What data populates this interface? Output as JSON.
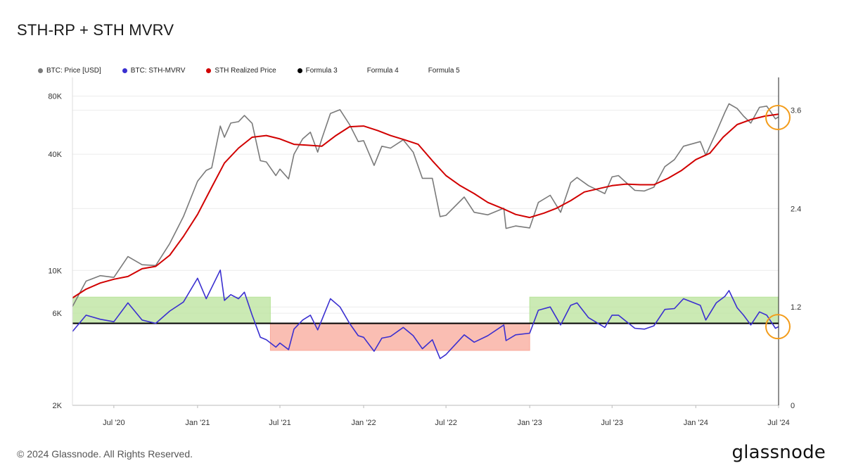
{
  "title": "STH-RP + STH MVRV",
  "legend": [
    {
      "label": "BTC: Price [USD]",
      "color": "#7a7a7a"
    },
    {
      "label": "BTC: STH-MVRV",
      "color": "#3a2fd0"
    },
    {
      "label": "STH Realized Price",
      "color": "#d10000"
    },
    {
      "label": "Formula 3",
      "color": "#000000"
    },
    {
      "label": "Formula 4",
      "color": ""
    },
    {
      "label": "Formula 5",
      "color": ""
    }
  ],
  "footer": "© 2024 Glassnode. All Rights Reserved.",
  "logo_text": "glassnode",
  "chart_data": {
    "type": "line",
    "x_type": "date",
    "x_range": [
      "2020-04-01",
      "2024-07-01"
    ],
    "x_ticks": [
      {
        "date": "2020-07-01",
        "label": "Jul '20"
      },
      {
        "date": "2021-01-01",
        "label": "Jan '21"
      },
      {
        "date": "2021-07-01",
        "label": "Jul '21"
      },
      {
        "date": "2022-01-01",
        "label": "Jan '22"
      },
      {
        "date": "2022-07-01",
        "label": "Jul '22"
      },
      {
        "date": "2023-01-01",
        "label": "Jan '23"
      },
      {
        "date": "2023-07-01",
        "label": "Jul '23"
      },
      {
        "date": "2024-01-01",
        "label": "Jan '24"
      },
      {
        "date": "2024-07-01",
        "label": "Jul '24"
      }
    ],
    "y_left": {
      "scale": "log",
      "range": [
        2000,
        100000
      ],
      "ticks": [
        {
          "value": 2000,
          "label": "2K"
        },
        {
          "value": 6000,
          "label": "6K"
        },
        {
          "value": 10000,
          "label": "10K"
        },
        {
          "value": 40000,
          "label": "40K"
        },
        {
          "value": 80000,
          "label": "80K"
        }
      ]
    },
    "y_right": {
      "scale": "linear",
      "range": [
        0,
        4.0
      ],
      "ticks": [
        {
          "value": 0,
          "label": "0"
        },
        {
          "value": 1.2,
          "label": "1.2"
        },
        {
          "value": 2.4,
          "label": "2.4"
        },
        {
          "value": 3.6,
          "label": "3.6"
        }
      ]
    },
    "grid": true,
    "reference_line": {
      "name": "Formula 3",
      "axis": "right",
      "value": 1.0,
      "color": "#000000"
    },
    "bands": [
      {
        "from": "2020-04-01",
        "to": "2021-06-10",
        "y_from": 1.0,
        "y_to": 1.32,
        "color": "#b9e39b"
      },
      {
        "from": "2021-06-10",
        "to": "2023-01-01",
        "y_from": 0.67,
        "y_to": 1.0,
        "color": "#f8a89a"
      },
      {
        "from": "2023-01-01",
        "to": "2024-07-01",
        "y_from": 1.0,
        "y_to": 1.32,
        "color": "#b9e39b"
      }
    ],
    "highlights": [
      {
        "date": "2024-07-01",
        "value": 62000,
        "axis": "left",
        "color": "#f39c1a"
      },
      {
        "date": "2024-07-01",
        "value": 0.96,
        "axis": "right",
        "color": "#f39c1a"
      }
    ],
    "series": [
      {
        "name": "BTC: Price [USD]",
        "axis": "left",
        "color": "#7a7a7a",
        "points": [
          [
            "2020-04-01",
            6500
          ],
          [
            "2020-05-01",
            8800
          ],
          [
            "2020-06-01",
            9400
          ],
          [
            "2020-07-01",
            9200
          ],
          [
            "2020-08-01",
            11800
          ],
          [
            "2020-09-01",
            10700
          ],
          [
            "2020-10-01",
            10600
          ],
          [
            "2020-11-01",
            13800
          ],
          [
            "2020-12-01",
            19000
          ],
          [
            "2021-01-01",
            29000
          ],
          [
            "2021-01-20",
            33000
          ],
          [
            "2021-02-01",
            34000
          ],
          [
            "2021-02-20",
            56000
          ],
          [
            "2021-03-01",
            49000
          ],
          [
            "2021-03-15",
            58000
          ],
          [
            "2021-04-01",
            59000
          ],
          [
            "2021-04-14",
            63500
          ],
          [
            "2021-05-01",
            57800
          ],
          [
            "2021-05-19",
            37000
          ],
          [
            "2021-06-01",
            36500
          ],
          [
            "2021-06-22",
            31000
          ],
          [
            "2021-07-01",
            33500
          ],
          [
            "2021-07-20",
            29800
          ],
          [
            "2021-08-01",
            40000
          ],
          [
            "2021-08-20",
            48000
          ],
          [
            "2021-09-06",
            52000
          ],
          [
            "2021-09-22",
            41000
          ],
          [
            "2021-10-01",
            48000
          ],
          [
            "2021-10-20",
            65000
          ],
          [
            "2021-11-10",
            68000
          ],
          [
            "2021-12-01",
            57000
          ],
          [
            "2021-12-20",
            46500
          ],
          [
            "2022-01-01",
            47000
          ],
          [
            "2022-01-24",
            35000
          ],
          [
            "2022-02-10",
            44000
          ],
          [
            "2022-03-01",
            43000
          ],
          [
            "2022-03-29",
            47500
          ],
          [
            "2022-04-20",
            41000
          ],
          [
            "2022-05-10",
            30000
          ],
          [
            "2022-06-01",
            30000
          ],
          [
            "2022-06-18",
            19000
          ],
          [
            "2022-07-01",
            19300
          ],
          [
            "2022-08-10",
            24000
          ],
          [
            "2022-09-01",
            20000
          ],
          [
            "2022-10-01",
            19400
          ],
          [
            "2022-11-05",
            21000
          ],
          [
            "2022-11-10",
            16500
          ],
          [
            "2022-12-01",
            17000
          ],
          [
            "2023-01-01",
            16600
          ],
          [
            "2023-01-20",
            22500
          ],
          [
            "2023-02-15",
            24500
          ],
          [
            "2023-03-10",
            20000
          ],
          [
            "2023-04-01",
            28500
          ],
          [
            "2023-04-15",
            30300
          ],
          [
            "2023-05-10",
            27500
          ],
          [
            "2023-06-15",
            25000
          ],
          [
            "2023-07-01",
            30500
          ],
          [
            "2023-07-15",
            31000
          ],
          [
            "2023-08-20",
            26000
          ],
          [
            "2023-09-10",
            25800
          ],
          [
            "2023-10-01",
            27000
          ],
          [
            "2023-10-25",
            34500
          ],
          [
            "2023-11-15",
            37500
          ],
          [
            "2023-12-05",
            44000
          ],
          [
            "2024-01-11",
            46500
          ],
          [
            "2024-01-23",
            39500
          ],
          [
            "2024-02-15",
            52000
          ],
          [
            "2024-03-05",
            66000
          ],
          [
            "2024-03-14",
            73000
          ],
          [
            "2024-04-01",
            69000
          ],
          [
            "2024-04-15",
            63000
          ],
          [
            "2024-05-01",
            58000
          ],
          [
            "2024-05-20",
            70000
          ],
          [
            "2024-06-05",
            71000
          ],
          [
            "2024-06-24",
            61000
          ],
          [
            "2024-07-01",
            62500
          ]
        ]
      },
      {
        "name": "STH Realized Price",
        "axis": "left",
        "color": "#d10000",
        "points": [
          [
            "2020-04-01",
            7200
          ],
          [
            "2020-05-01",
            8000
          ],
          [
            "2020-06-01",
            8600
          ],
          [
            "2020-07-01",
            9000
          ],
          [
            "2020-08-01",
            9300
          ],
          [
            "2020-09-01",
            10200
          ],
          [
            "2020-10-01",
            10500
          ],
          [
            "2020-11-01",
            12000
          ],
          [
            "2020-12-01",
            15000
          ],
          [
            "2021-01-01",
            19500
          ],
          [
            "2021-02-01",
            27000
          ],
          [
            "2021-03-01",
            36000
          ],
          [
            "2021-04-01",
            43000
          ],
          [
            "2021-05-01",
            49000
          ],
          [
            "2021-06-01",
            50000
          ],
          [
            "2021-07-01",
            48000
          ],
          [
            "2021-08-01",
            45000
          ],
          [
            "2021-09-01",
            44500
          ],
          [
            "2021-10-01",
            44000
          ],
          [
            "2021-11-01",
            50000
          ],
          [
            "2021-12-01",
            55500
          ],
          [
            "2022-01-01",
            56000
          ],
          [
            "2022-02-01",
            53000
          ],
          [
            "2022-03-01",
            50000
          ],
          [
            "2022-04-01",
            47500
          ],
          [
            "2022-05-01",
            45000
          ],
          [
            "2022-06-01",
            37000
          ],
          [
            "2022-07-01",
            31000
          ],
          [
            "2022-08-01",
            27500
          ],
          [
            "2022-09-01",
            25000
          ],
          [
            "2022-10-01",
            22500
          ],
          [
            "2022-11-01",
            21000
          ],
          [
            "2022-12-01",
            19500
          ],
          [
            "2023-01-01",
            18800
          ],
          [
            "2023-02-01",
            19800
          ],
          [
            "2023-03-01",
            21000
          ],
          [
            "2023-04-01",
            23000
          ],
          [
            "2023-05-01",
            25500
          ],
          [
            "2023-06-01",
            26500
          ],
          [
            "2023-07-01",
            27500
          ],
          [
            "2023-08-01",
            28000
          ],
          [
            "2023-09-01",
            27800
          ],
          [
            "2023-10-01",
            27800
          ],
          [
            "2023-11-01",
            30000
          ],
          [
            "2023-12-01",
            33000
          ],
          [
            "2024-01-01",
            37500
          ],
          [
            "2024-02-01",
            40500
          ],
          [
            "2024-03-01",
            49000
          ],
          [
            "2024-04-01",
            57000
          ],
          [
            "2024-05-01",
            60500
          ],
          [
            "2024-06-01",
            63000
          ],
          [
            "2024-07-01",
            64500
          ]
        ]
      },
      {
        "name": "BTC: STH-MVRV",
        "axis": "right",
        "color": "#3a2fd0",
        "points": [
          [
            "2020-04-01",
            0.9
          ],
          [
            "2020-05-01",
            1.1
          ],
          [
            "2020-06-01",
            1.05
          ],
          [
            "2020-07-01",
            1.02
          ],
          [
            "2020-08-01",
            1.25
          ],
          [
            "2020-09-01",
            1.04
          ],
          [
            "2020-10-01",
            1.0
          ],
          [
            "2020-11-01",
            1.15
          ],
          [
            "2020-12-01",
            1.26
          ],
          [
            "2021-01-01",
            1.55
          ],
          [
            "2021-01-20",
            1.3
          ],
          [
            "2021-02-20",
            1.65
          ],
          [
            "2021-03-01",
            1.28
          ],
          [
            "2021-03-15",
            1.35
          ],
          [
            "2021-04-01",
            1.3
          ],
          [
            "2021-04-14",
            1.38
          ],
          [
            "2021-05-01",
            1.1
          ],
          [
            "2021-05-19",
            0.83
          ],
          [
            "2021-06-01",
            0.8
          ],
          [
            "2021-06-22",
            0.71
          ],
          [
            "2021-07-01",
            0.76
          ],
          [
            "2021-07-20",
            0.68
          ],
          [
            "2021-08-01",
            0.93
          ],
          [
            "2021-08-20",
            1.04
          ],
          [
            "2021-09-06",
            1.1
          ],
          [
            "2021-09-22",
            0.92
          ],
          [
            "2021-10-01",
            1.04
          ],
          [
            "2021-10-20",
            1.3
          ],
          [
            "2021-11-10",
            1.2
          ],
          [
            "2021-12-01",
            1.0
          ],
          [
            "2021-12-20",
            0.85
          ],
          [
            "2022-01-01",
            0.83
          ],
          [
            "2022-01-24",
            0.66
          ],
          [
            "2022-02-10",
            0.82
          ],
          [
            "2022-03-01",
            0.84
          ],
          [
            "2022-03-29",
            0.95
          ],
          [
            "2022-04-20",
            0.85
          ],
          [
            "2022-05-10",
            0.69
          ],
          [
            "2022-06-01",
            0.8
          ],
          [
            "2022-06-18",
            0.57
          ],
          [
            "2022-07-01",
            0.62
          ],
          [
            "2022-08-10",
            0.86
          ],
          [
            "2022-09-01",
            0.77
          ],
          [
            "2022-10-01",
            0.85
          ],
          [
            "2022-11-05",
            0.98
          ],
          [
            "2022-11-10",
            0.79
          ],
          [
            "2022-12-01",
            0.86
          ],
          [
            "2023-01-01",
            0.88
          ],
          [
            "2023-01-20",
            1.16
          ],
          [
            "2023-02-15",
            1.2
          ],
          [
            "2023-03-10",
            0.98
          ],
          [
            "2023-04-01",
            1.22
          ],
          [
            "2023-04-15",
            1.25
          ],
          [
            "2023-05-10",
            1.07
          ],
          [
            "2023-06-15",
            0.95
          ],
          [
            "2023-07-01",
            1.1
          ],
          [
            "2023-07-15",
            1.1
          ],
          [
            "2023-08-20",
            0.94
          ],
          [
            "2023-09-10",
            0.93
          ],
          [
            "2023-10-01",
            0.97
          ],
          [
            "2023-10-25",
            1.17
          ],
          [
            "2023-11-15",
            1.18
          ],
          [
            "2023-12-05",
            1.3
          ],
          [
            "2024-01-11",
            1.22
          ],
          [
            "2024-01-23",
            1.04
          ],
          [
            "2024-02-15",
            1.25
          ],
          [
            "2024-03-05",
            1.33
          ],
          [
            "2024-03-14",
            1.4
          ],
          [
            "2024-04-01",
            1.19
          ],
          [
            "2024-04-15",
            1.1
          ],
          [
            "2024-05-01",
            0.98
          ],
          [
            "2024-05-20",
            1.14
          ],
          [
            "2024-06-05",
            1.1
          ],
          [
            "2024-06-24",
            0.94
          ],
          [
            "2024-07-01",
            0.96
          ]
        ]
      }
    ]
  }
}
